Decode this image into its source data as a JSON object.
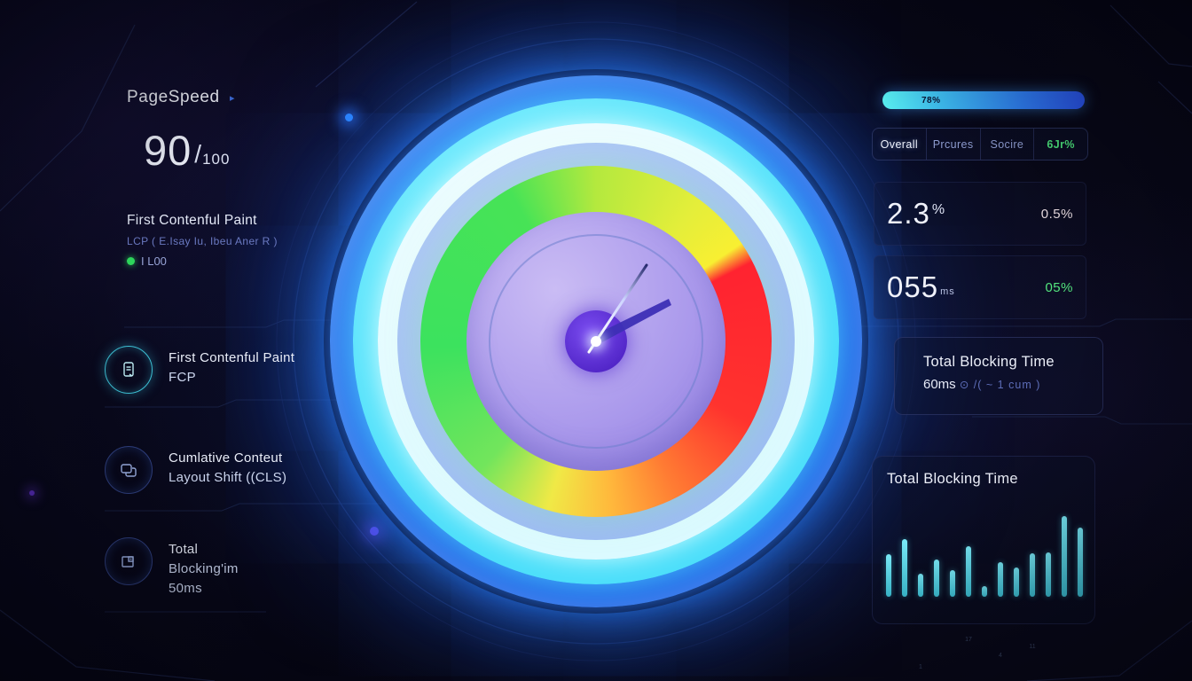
{
  "app": {
    "title": "PageSpeed",
    "title_arrow": "▸"
  },
  "score": {
    "value": "90",
    "separator": "/",
    "max": "100"
  },
  "summary": {
    "title": "First Contenful Paint",
    "subtitle": "LCP ( E.Isay Iu, Ibeu Aner R )",
    "status": "I L00"
  },
  "metrics": [
    {
      "icon": "document-icon",
      "line1": "First Contenful Paint",
      "line2": "FCP",
      "line3": ""
    },
    {
      "icon": "layers-icon",
      "line1": "Cumlative Conteut",
      "line2": "Layout Shift ((CLS)",
      "line3": ""
    },
    {
      "icon": "blocks-icon",
      "line1": "Total",
      "line2": "Blocking'im",
      "line3": "50ms"
    }
  ],
  "progress": {
    "label": "78%"
  },
  "tabs": [
    {
      "label": "Overall",
      "active": true,
      "color": "#eef2fc"
    },
    {
      "label": "Prcures",
      "active": false,
      "color": "#8e9cd0"
    },
    {
      "label": "Socire",
      "active": false,
      "color": "#8e9cd0"
    },
    {
      "label": "6Jr%",
      "active": false,
      "color": "#4ce47c"
    }
  ],
  "stats": [
    {
      "value": "2.3",
      "unit": "%",
      "side": "0.5%",
      "side_color": "#e9dde2"
    },
    {
      "value": "055",
      "unit": "ms",
      "side": "05%",
      "side_color": "#53e57e"
    }
  ],
  "tbt": {
    "title": "Total Blocking Time",
    "value": "60ms",
    "detail": "⊙ /( ~ 1 cum )"
  },
  "chart_data": {
    "type": "bar",
    "title": "Total Blocking Time",
    "bar_color": "#4fd9ec",
    "values": [
      48,
      65,
      26,
      42,
      30,
      57,
      12,
      39,
      33,
      49,
      50,
      91,
      78
    ],
    "x_labels": [
      "",
      "",
      "1",
      "",
      "",
      "17",
      "",
      "4",
      "",
      "11",
      "",
      "",
      ""
    ],
    "ylim": [
      0,
      100
    ],
    "xlabel": "",
    "ylabel": ""
  },
  "gauge": {
    "type": "radial-meter",
    "segments": [
      "green",
      "yellow",
      "red",
      "orange"
    ],
    "ring_colors": {
      "outer_blue": "#1d63e8",
      "cyan": "#4cdffa",
      "pale": "#dbfaff",
      "periwinkle": "#9ebcf4"
    },
    "hub_color": "#5226c8",
    "status_dot_color": "#2ed95d",
    "accent_green": "#3fe06c"
  }
}
